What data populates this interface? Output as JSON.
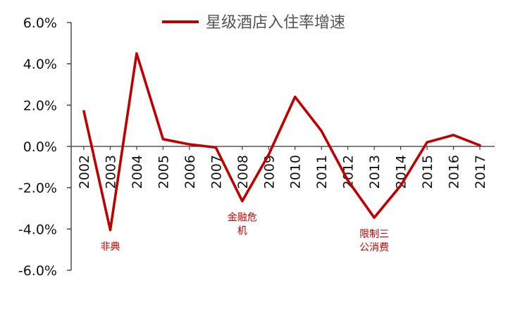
{
  "chart_data": {
    "type": "line",
    "categories": [
      "2002",
      "2003",
      "2004",
      "2005",
      "2006",
      "2007",
      "2008",
      "2009",
      "2010",
      "2011",
      "2012",
      "2013",
      "2014",
      "2015",
      "2016",
      "2017"
    ],
    "series": [
      {
        "name": "星级酒店入住率增速",
        "values": [
          1.7,
          -4.05,
          4.5,
          0.35,
          0.1,
          -0.05,
          -2.65,
          -0.4,
          2.4,
          0.75,
          -1.65,
          -3.45,
          -1.9,
          0.2,
          0.55,
          0.05
        ],
        "color": "#c00000"
      }
    ],
    "ylim": [
      -6.0,
      6.0
    ],
    "yticks": [
      "6.0%",
      "4.0%",
      "2.0%",
      "0.0%",
      "-2.0%",
      "-4.0%",
      "-6.0%"
    ],
    "ytick_values": [
      6,
      4,
      2,
      0,
      -2,
      -4,
      -6
    ],
    "legend_position": "top",
    "grid": false,
    "annotations": [
      {
        "category": "2003",
        "lines": [
          "非典"
        ]
      },
      {
        "category": "2008",
        "lines": [
          "金融危",
          "机"
        ]
      },
      {
        "category": "2013",
        "lines": [
          "限制三",
          "公消费"
        ]
      }
    ]
  }
}
